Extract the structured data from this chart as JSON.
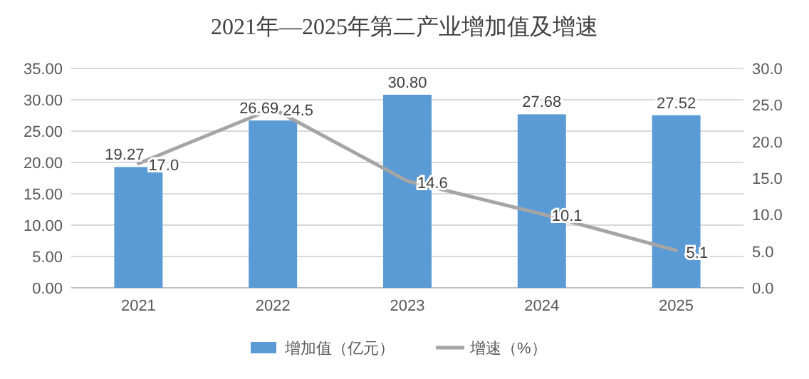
{
  "chart_data": {
    "type": "bar",
    "title": "2021年—2025年第二产业增加值及增速",
    "categories": [
      "2021",
      "2022",
      "2023",
      "2024",
      "2025"
    ],
    "series": [
      {
        "name": "增加值（亿元）",
        "color": "#5b9bd5",
        "values": [
          19.27,
          26.69,
          30.8,
          27.68,
          27.52
        ],
        "value_labels": [
          "19.27",
          "26.69",
          "30.80",
          "27.68",
          "27.52"
        ]
      },
      {
        "name": "增速（%）",
        "type": "line",
        "axis": "y2",
        "color": "#a5a5a5",
        "values": [
          17.0,
          24.5,
          14.6,
          10.1,
          5.1
        ],
        "value_labels": [
          "17.0",
          "24.5",
          "14.6",
          "10.1",
          "5.1"
        ]
      }
    ],
    "ylim": [
      0,
      35
    ],
    "yticks": [
      {
        "value": 0,
        "label": "0.00"
      },
      {
        "value": 5,
        "label": "5.00"
      },
      {
        "value": 10,
        "label": "10.00"
      },
      {
        "value": 15,
        "label": "15.00"
      },
      {
        "value": 20,
        "label": "20.00"
      },
      {
        "value": 25,
        "label": "25.00"
      },
      {
        "value": 30,
        "label": "30.00"
      },
      {
        "value": 35,
        "label": "35.00"
      }
    ],
    "y2lim": [
      0,
      30
    ],
    "y2ticks": [
      {
        "value": 0,
        "label": "0.0"
      },
      {
        "value": 5,
        "label": "5.0"
      },
      {
        "value": 10,
        "label": "10.0"
      },
      {
        "value": 15,
        "label": "15.0"
      },
      {
        "value": 20,
        "label": "20.0"
      },
      {
        "value": 25,
        "label": "25.0"
      },
      {
        "value": 30,
        "label": "30.0"
      }
    ],
    "grid": "y",
    "legend": "bottom",
    "marker": "none",
    "line_style": "solid"
  }
}
